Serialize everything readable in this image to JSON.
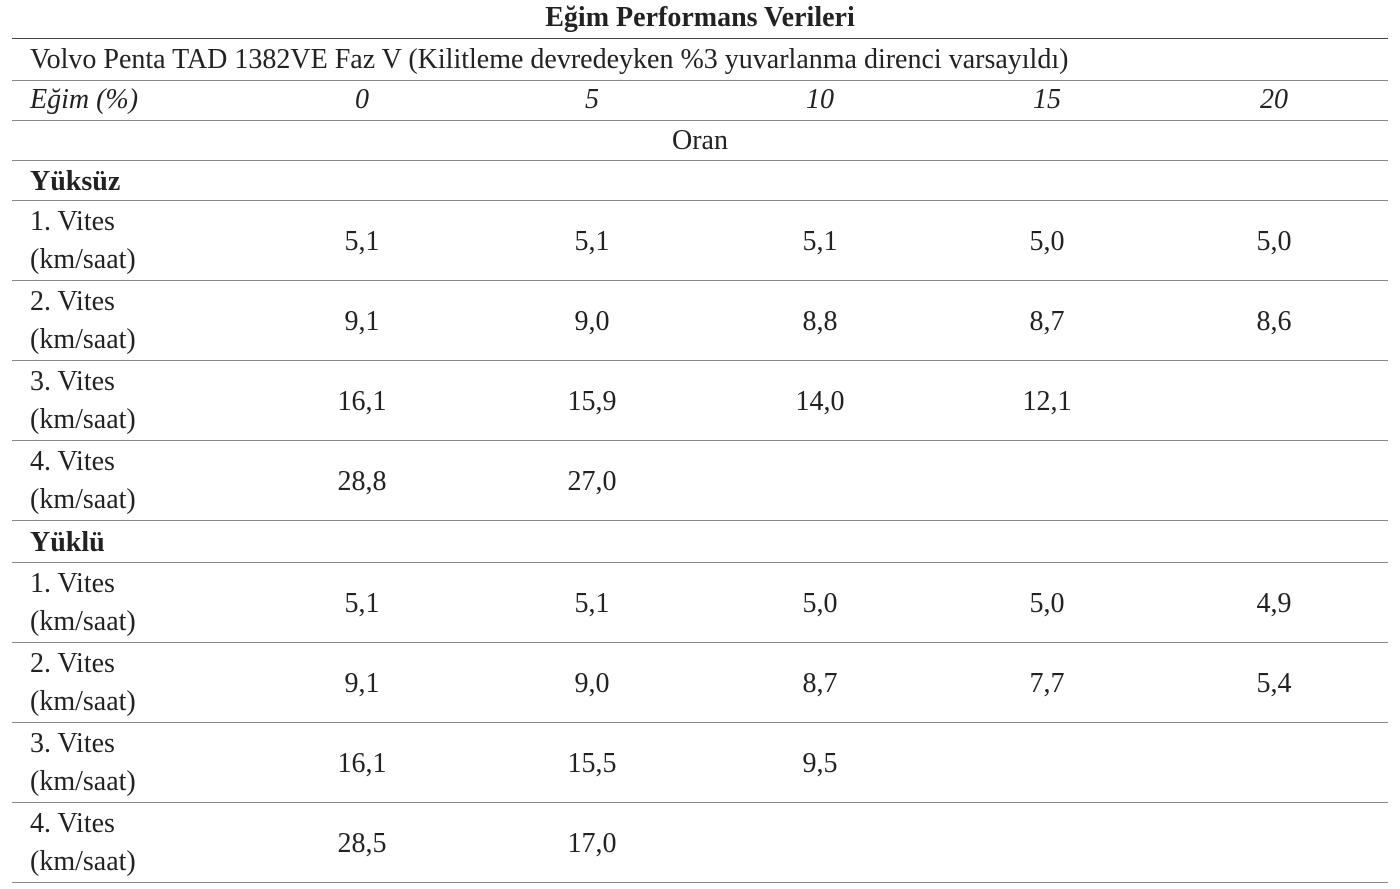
{
  "title": "Eğim Performans Verileri",
  "subtitle": "Volvo Penta TAD 1382VE Faz V (Kilitleme devredeyken %3 yuvarlanma direnci varsayıldı)",
  "header": {
    "label": "Eğim (%)",
    "columns": [
      0,
      5,
      10,
      15,
      20
    ]
  },
  "unit_row": "Oran",
  "groups": [
    {
      "name": "Yüksüz",
      "rows": [
        {
          "label": [
            "1. Vites",
            "(km/saat)"
          ],
          "values": [
            "5,1",
            "5,1",
            "5,1",
            "5,0",
            "5,0"
          ]
        },
        {
          "label": [
            "2. Vites",
            "(km/saat)"
          ],
          "values": [
            "9,1",
            "9,0",
            "8,8",
            "8,7",
            "8,6"
          ]
        },
        {
          "label": [
            "3. Vites",
            "(km/saat)"
          ],
          "values": [
            "16,1",
            "15,9",
            "14,0",
            "12,1",
            null
          ]
        },
        {
          "label": [
            "4. Vites",
            "(km/saat)"
          ],
          "values": [
            "28,8",
            "27,0",
            null,
            null,
            null
          ]
        }
      ]
    },
    {
      "name": "Yüklü",
      "rows": [
        {
          "label": [
            "1. Vites",
            "(km/saat)"
          ],
          "values": [
            "5,1",
            "5,1",
            "5,0",
            "5,0",
            "4,9"
          ]
        },
        {
          "label": [
            "2. Vites",
            "(km/saat)"
          ],
          "values": [
            "9,1",
            "9,0",
            "8,7",
            "7,7",
            "5,4"
          ]
        },
        {
          "label": [
            "3. Vites",
            "(km/saat)"
          ],
          "values": [
            "16,1",
            "15,5",
            "9,5",
            null,
            null
          ]
        },
        {
          "label": [
            "4. Vites",
            "(km/saat)"
          ],
          "values": [
            "28,5",
            "17,0",
            null,
            null,
            null
          ]
        }
      ]
    }
  ]
}
